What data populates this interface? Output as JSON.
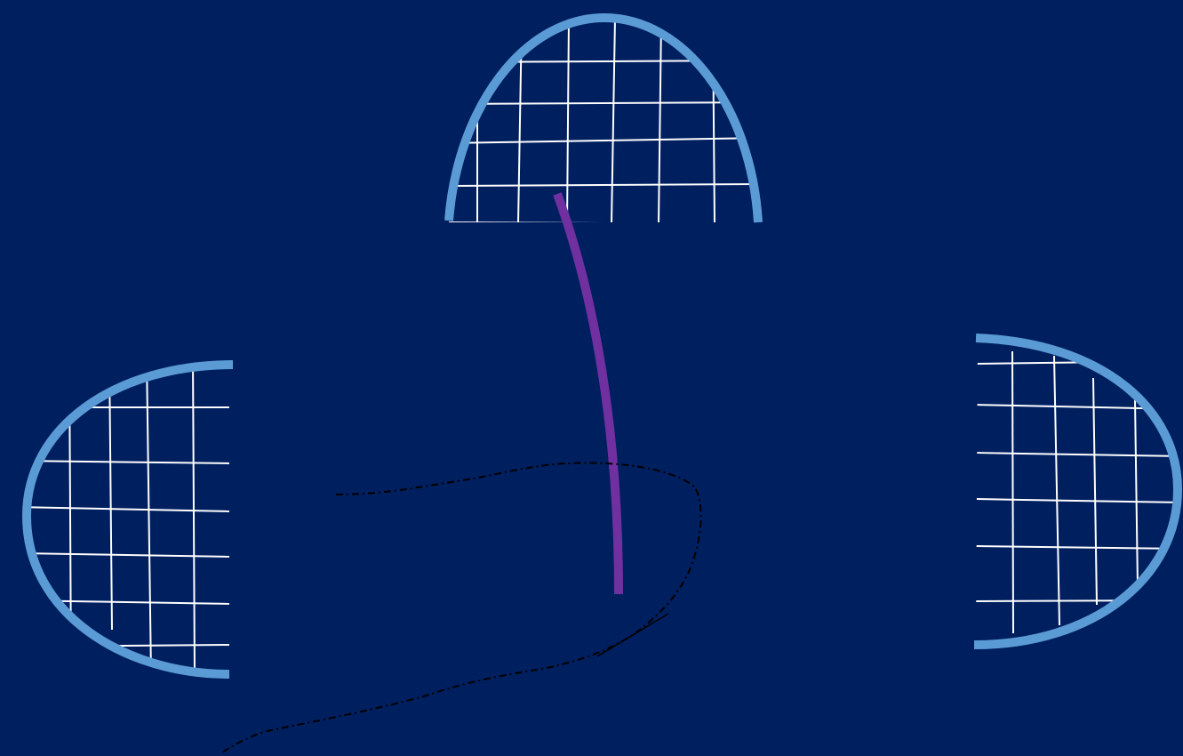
{
  "colors": {
    "background": "#001f5f",
    "dome_outline": "#5b9bd5",
    "grid_lines": "#ffffff",
    "stroke_path": "#7030a0",
    "dash_path": "#000000"
  },
  "shapes": {
    "top_dome": {
      "icon": "half-dome-grid",
      "orientation": "up"
    },
    "left_dome": {
      "icon": "half-dome-grid",
      "orientation": "left"
    },
    "right_dome": {
      "icon": "half-dome-grid",
      "orientation": "right"
    },
    "purple_curve": {
      "icon": "curved-stroke"
    },
    "dashed_path": {
      "icon": "dash-dot-path"
    }
  }
}
